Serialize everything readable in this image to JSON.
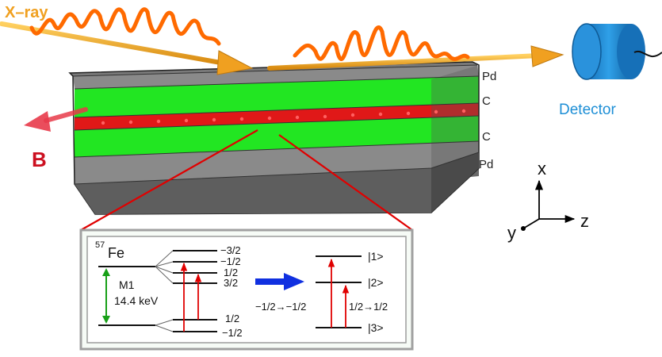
{
  "beam": {
    "label": "X–ray"
  },
  "detector": {
    "label": "Detector"
  },
  "field": {
    "label": "B"
  },
  "layers": {
    "pd_top": "Pd",
    "c_top": "C",
    "c_bottom": "C",
    "pd_bottom": "Pd"
  },
  "axes": {
    "x": "x",
    "y": "y",
    "z": "z"
  },
  "inset": {
    "nucleus_mass": "57",
    "nucleus_symbol": "Fe",
    "transition_type": "M1",
    "transition_energy": "14.4 keV",
    "excited_levels": [
      "−3/2",
      "−1/2",
      "1/2",
      "3/2"
    ],
    "ground_levels": [
      "1/2",
      "−1/2"
    ],
    "states": [
      "|1>",
      "|2>",
      "|3>"
    ],
    "transition_left": "−1/2→−1/2",
    "transition_right": "1/2→1/2"
  },
  "colors": {
    "pd_layer": "#8c8c8c",
    "c_layer": "#22e622",
    "fe_layer": "#e01818",
    "beam": "#f0a020",
    "wave": "#ff6a00",
    "detector": "#1e8fd6",
    "field_arrow": "#e03040",
    "b_label": "#cc1020",
    "level_arrow": "#e00000",
    "m1_arrow": "#18a018",
    "map_arrow": "#1030e0"
  }
}
